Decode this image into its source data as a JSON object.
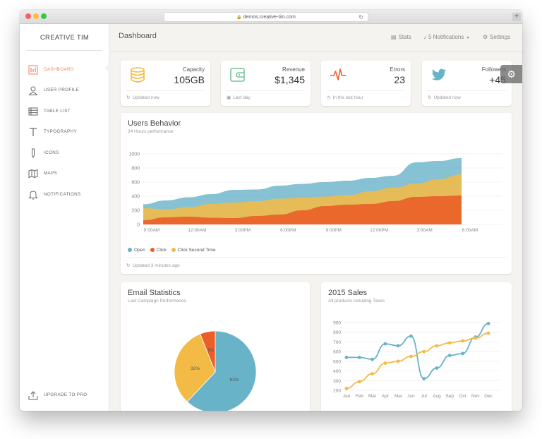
{
  "browser": {
    "url": "demos.creative-tim.com",
    "new_tab_label": "+"
  },
  "sidebar": {
    "brand": "CREATIVE TIM",
    "items": [
      {
        "label": "DASHBOARD",
        "icon": "chart-bars-icon",
        "active": true
      },
      {
        "label": "USER PROFILE",
        "icon": "user-icon",
        "active": false
      },
      {
        "label": "TABLE LIST",
        "icon": "table-icon",
        "active": false
      },
      {
        "label": "TYPOGRAPHY",
        "icon": "typography-icon",
        "active": false
      },
      {
        "label": "ICONS",
        "icon": "pencil-icon",
        "active": false
      },
      {
        "label": "MAPS",
        "icon": "map-icon",
        "active": false
      },
      {
        "label": "NOTIFICATIONS",
        "icon": "bell-icon",
        "active": false
      }
    ],
    "upgrade_label": "UPGRADE TO PRO"
  },
  "topbar": {
    "title": "Dashboard",
    "stats_label": "Stats",
    "notifications_label": "5 Notifications",
    "settings_label": "Settings"
  },
  "stat_cards": [
    {
      "label": "Capacity",
      "value": "105GB",
      "footer": "Updated now",
      "icon": "database-icon",
      "footer_icon": "reload-icon",
      "color": "#f3bb45"
    },
    {
      "label": "Revenue",
      "value": "$1,345",
      "footer": "Last day",
      "icon": "wallet-icon",
      "footer_icon": "calendar-icon",
      "color": "#7ac29a"
    },
    {
      "label": "Errors",
      "value": "23",
      "footer": "In the last hour",
      "icon": "pulse-icon",
      "footer_icon": "clock-icon",
      "color": "#eb5e28"
    },
    {
      "label": "Followers",
      "value": "+45",
      "footer": "Updated now",
      "icon": "twitter-icon",
      "footer_icon": "reload-icon",
      "color": "#68b3c8"
    }
  ],
  "users_behavior": {
    "title": "Users Behavior",
    "subtitle": "24 Hours performance",
    "footer": "Updated 3 minutes ago",
    "legend": [
      {
        "name": "Open",
        "color": "#68b3c8"
      },
      {
        "name": "Click",
        "color": "#eb5e28"
      },
      {
        "name": "Click Second Time",
        "color": "#f3bb45"
      }
    ]
  },
  "email_stats": {
    "title": "Email Statistics",
    "subtitle": "Last Campaign Performance"
  },
  "sales": {
    "title": "2015 Sales",
    "subtitle": "All products including Taxes"
  },
  "colors": {
    "accent": "#ef8157",
    "blue": "#68b3c8",
    "orange": "#eb5e28",
    "yellow": "#f3bb45",
    "background": "#f4f3ef"
  },
  "chart_data": [
    {
      "type": "area",
      "title": "Users Behavior",
      "categories": [
        "9:00AM",
        "12:00AM",
        "3:00PM",
        "6:00PM",
        "9:00PM",
        "12:00PM",
        "3:00AM",
        "6:00AM"
      ],
      "ylim": [
        0,
        1000
      ],
      "yticks": [
        0,
        200,
        400,
        600,
        800,
        1000
      ],
      "x": [
        0,
        0.5,
        1,
        1.5,
        2,
        2.5,
        3,
        3.5,
        4,
        4.5,
        5,
        5.5,
        6,
        6.5,
        7
      ],
      "series": [
        {
          "name": "Open",
          "values": [
            287,
            340,
            385,
            430,
            490,
            495,
            550,
            575,
            600,
            620,
            660,
            690,
            880,
            900,
            940
          ]
        },
        {
          "name": "Click Second Time",
          "values": [
            230,
            215,
            245,
            290,
            310,
            330,
            365,
            380,
            395,
            415,
            470,
            520,
            580,
            640,
            710
          ]
        },
        {
          "name": "Click",
          "values": [
            60,
            100,
            110,
            95,
            90,
            120,
            140,
            200,
            260,
            280,
            290,
            330,
            390,
            400,
            410
          ]
        }
      ],
      "grid": true
    },
    {
      "type": "pie",
      "title": "Email Statistics",
      "labels": [
        "62%",
        "32%",
        "6%"
      ],
      "values": [
        62,
        32,
        6
      ],
      "colors": [
        "#68b3c8",
        "#f3bb45",
        "#eb5e28"
      ]
    },
    {
      "type": "line",
      "title": "2015 Sales",
      "categories": [
        "Jan",
        "Feb",
        "Mar",
        "Apr",
        "Mai",
        "Jun",
        "Jul",
        "Aug",
        "Sep",
        "Oct",
        "Nov",
        "Dec"
      ],
      "ylim": [
        200,
        900
      ],
      "yticks": [
        200,
        300,
        400,
        500,
        600,
        700,
        800,
        900
      ],
      "series": [
        {
          "values": [
            540,
            540,
            520,
            680,
            660,
            760,
            320,
            430,
            560,
            580,
            750,
            890
          ],
          "color": "#68b3c8"
        },
        {
          "values": [
            220,
            290,
            370,
            480,
            500,
            550,
            600,
            660,
            690,
            710,
            740,
            790
          ],
          "color": "#f3bb45"
        }
      ],
      "grid": true
    }
  ]
}
